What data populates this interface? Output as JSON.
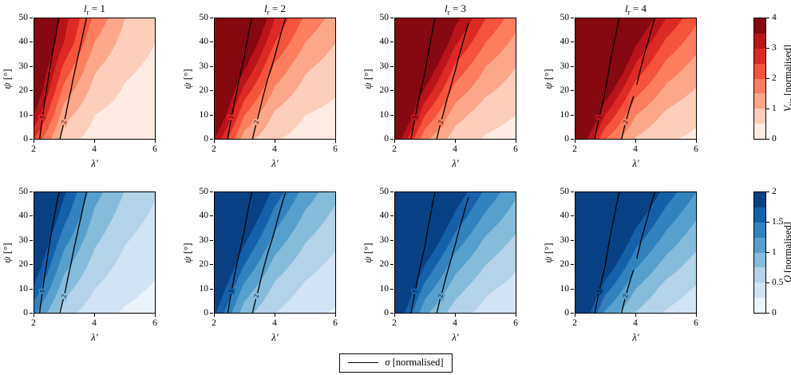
{
  "figure": {
    "columns": [
      {
        "var": "l",
        "sub": "r",
        "rhs": " = 1"
      },
      {
        "var": "l",
        "sub": "r",
        "rhs": " = 2"
      },
      {
        "var": "l",
        "sub": "r",
        "rhs": " = 3"
      },
      {
        "var": "l",
        "sub": "r",
        "rhs": " = 4"
      }
    ],
    "axes": {
      "xlabel": "λ′",
      "ylabel_var": "ψ",
      "ylabel_unit": " [°]",
      "xticks": [
        2,
        4,
        6
      ],
      "yticks": [
        0,
        10,
        20,
        30,
        40,
        50
      ],
      "xlim": [
        2,
        6
      ],
      "ylim": [
        0,
        50
      ]
    },
    "colorbars": [
      {
        "label_var": "V",
        "label_sub": "tip",
        "label_rest": " [normalised]",
        "ticks": [
          0,
          1,
          2,
          3,
          4
        ],
        "vmin": 0,
        "vmax": 4,
        "colormap": "reds"
      },
      {
        "label_var": "Q",
        "label_sub": "",
        "label_rest": " [normalised]",
        "ticks": [
          0,
          0.5,
          1,
          1.5,
          2
        ],
        "vmin": 0,
        "vmax": 2,
        "colormap": "blues"
      }
    ],
    "legend": {
      "line": "solid-black",
      "label_var": "σ",
      "label_rest": " [normalised]"
    }
  },
  "chart_data": {
    "type": "heatmap",
    "subtype": "filled-contour-grid",
    "x": [
      2,
      3,
      4,
      5,
      6
    ],
    "y": [
      0,
      10,
      20,
      30,
      40,
      50
    ],
    "rows": [
      {
        "quantity": "V_tip [normalised]",
        "colormap": "reds",
        "vmin": 0,
        "vmax": 4,
        "n_bands": 8,
        "panels": [
          {
            "lr": 1,
            "values": [
              [
                2.5,
                0.7,
                0.3,
                0.15,
                0.1
              ],
              [
                3.5,
                1.2,
                0.5,
                0.3,
                0.2
              ],
              [
                4.2,
                1.8,
                0.8,
                0.45,
                0.3
              ],
              [
                4.5,
                2.4,
                1.1,
                0.6,
                0.4
              ],
              [
                4.8,
                3.0,
                1.5,
                0.8,
                0.5
              ],
              [
                5.0,
                3.2,
                1.9,
                1.0,
                0.6
              ]
            ]
          },
          {
            "lr": 2,
            "values": [
              [
                3.5,
                1.2,
                0.55,
                0.3,
                0.2
              ],
              [
                4.5,
                2.0,
                0.9,
                0.5,
                0.35
              ],
              [
                5.0,
                2.8,
                1.4,
                0.8,
                0.55
              ],
              [
                5.5,
                3.6,
                1.9,
                1.1,
                0.75
              ],
              [
                6.0,
                4.3,
                2.5,
                1.5,
                1.0
              ],
              [
                6.5,
                5.0,
                3.0,
                1.9,
                1.3
              ]
            ]
          },
          {
            "lr": 3,
            "values": [
              [
                4.0,
                1.6,
                0.75,
                0.45,
                0.3
              ],
              [
                5.0,
                2.5,
                1.2,
                0.7,
                0.5
              ],
              [
                5.5,
                3.4,
                1.8,
                1.1,
                0.75
              ],
              [
                6.0,
                4.2,
                2.4,
                1.5,
                1.0
              ],
              [
                6.5,
                5.0,
                3.1,
                2.0,
                1.35
              ],
              [
                7.0,
                5.7,
                3.7,
                2.5,
                1.7
              ]
            ]
          },
          {
            "lr": 4,
            "values": [
              [
                4.5,
                2.0,
                0.95,
                0.55,
                0.4
              ],
              [
                5.5,
                3.0,
                1.5,
                0.9,
                0.6
              ],
              [
                6.0,
                3.9,
                2.2,
                1.35,
                0.95
              ],
              [
                6.5,
                4.8,
                2.9,
                1.85,
                1.3
              ],
              [
                7.0,
                5.6,
                3.6,
                2.4,
                1.7
              ],
              [
                7.5,
                6.3,
                4.3,
                3.0,
                2.1
              ]
            ]
          }
        ]
      },
      {
        "quantity": "Q [normalised]",
        "colormap": "blues",
        "vmin": 0,
        "vmax": 2,
        "n_bands": 8,
        "panels": [
          {
            "lr": 1,
            "values": [
              [
                1.3,
                0.6,
                0.35,
                0.22,
                0.15
              ],
              [
                1.7,
                0.85,
                0.5,
                0.32,
                0.22
              ],
              [
                2.0,
                1.1,
                0.65,
                0.42,
                0.3
              ],
              [
                2.2,
                1.35,
                0.8,
                0.52,
                0.37
              ],
              [
                2.4,
                1.6,
                0.95,
                0.63,
                0.45
              ],
              [
                2.5,
                1.8,
                1.1,
                0.74,
                0.52
              ]
            ]
          },
          {
            "lr": 2,
            "values": [
              [
                1.8,
                0.85,
                0.5,
                0.32,
                0.22
              ],
              [
                2.1,
                1.15,
                0.68,
                0.45,
                0.32
              ],
              [
                2.4,
                1.5,
                0.9,
                0.6,
                0.43
              ],
              [
                2.6,
                1.8,
                1.15,
                0.77,
                0.55
              ],
              [
                2.8,
                2.1,
                1.4,
                0.95,
                0.68
              ],
              [
                3.0,
                2.35,
                1.65,
                1.15,
                0.82
              ]
            ]
          },
          {
            "lr": 3,
            "values": [
              [
                2.1,
                1.05,
                0.62,
                0.4,
                0.28
              ],
              [
                2.4,
                1.4,
                0.85,
                0.55,
                0.4
              ],
              [
                2.7,
                1.75,
                1.1,
                0.75,
                0.54
              ],
              [
                2.9,
                2.1,
                1.4,
                0.95,
                0.7
              ],
              [
                3.1,
                2.4,
                1.7,
                1.2,
                0.87
              ],
              [
                3.3,
                2.65,
                1.95,
                1.45,
                1.05
              ]
            ]
          },
          {
            "lr": 4,
            "values": [
              [
                2.3,
                1.2,
                0.73,
                0.47,
                0.33
              ],
              [
                2.6,
                1.6,
                1.0,
                0.65,
                0.47
              ],
              [
                2.9,
                2.0,
                1.3,
                0.9,
                0.64
              ],
              [
                3.1,
                2.35,
                1.6,
                1.15,
                0.83
              ],
              [
                3.3,
                2.65,
                1.9,
                1.4,
                1.03
              ],
              [
                3.5,
                2.9,
                2.2,
                1.65,
                1.25
              ]
            ]
          }
        ]
      }
    ],
    "sigma_overlay": {
      "quantity": "σ [normalised]",
      "levels": [
        1,
        2
      ],
      "level_labels": [
        "1",
        "2"
      ],
      "panels": [
        [
          [
            0.7,
            2.2,
            4.0,
            6.0,
            8.0
          ],
          [
            0.6,
            1.9,
            3.6,
            5.5,
            7.4
          ],
          [
            0.52,
            1.65,
            3.2,
            5.0,
            6.8
          ],
          [
            0.45,
            1.45,
            2.85,
            4.5,
            6.2
          ],
          [
            0.4,
            1.27,
            2.55,
            4.05,
            5.7
          ],
          [
            0.35,
            1.12,
            2.3,
            3.65,
            5.2
          ]
        ],
        [
          [
            0.5,
            1.6,
            3.1,
            4.8,
            6.5
          ],
          [
            0.44,
            1.38,
            2.7,
            4.3,
            5.9
          ],
          [
            0.38,
            1.2,
            2.4,
            3.85,
            5.35
          ],
          [
            0.34,
            1.05,
            2.1,
            3.45,
            4.85
          ],
          [
            0.3,
            0.92,
            1.85,
            3.05,
            4.35
          ],
          [
            0.27,
            0.8,
            1.6,
            2.7,
            3.9
          ]
        ],
        [
          [
            0.45,
            1.45,
            2.85,
            4.5,
            6.1
          ],
          [
            0.4,
            1.25,
            2.5,
            4.0,
            5.5
          ],
          [
            0.35,
            1.1,
            2.2,
            3.6,
            5.0
          ],
          [
            0.31,
            0.96,
            1.95,
            3.2,
            4.5
          ],
          [
            0.28,
            0.84,
            1.7,
            2.85,
            4.05
          ],
          [
            0.25,
            0.74,
            1.5,
            2.5,
            3.65
          ]
        ],
        [
          [
            0.42,
            1.3,
            2.6,
            4.2,
            5.8
          ],
          [
            0.37,
            1.13,
            2.3,
            3.75,
            5.2
          ],
          [
            0.33,
            0.99,
            2.0,
            3.35,
            4.7
          ],
          [
            0.29,
            0.87,
            1.77,
            3.0,
            4.2
          ],
          [
            0.26,
            0.76,
            1.55,
            2.65,
            3.8
          ],
          [
            0.23,
            0.67,
            1.37,
            2.35,
            3.4
          ]
        ]
      ]
    }
  },
  "colors": {
    "reds": [
      "#fff5f0",
      "#fee0d2",
      "#fcbba1",
      "#fc9272",
      "#fb6a4a",
      "#ef3b2c",
      "#cb181d",
      "#a50f15",
      "#67000d"
    ],
    "blues": [
      "#f7fbff",
      "#deebf7",
      "#c6dbef",
      "#9ecae1",
      "#6baed6",
      "#4292c6",
      "#2171b5",
      "#08519c",
      "#08306b"
    ],
    "contour_line": "#000000",
    "frame": "#000000",
    "background": "#ffffff"
  }
}
